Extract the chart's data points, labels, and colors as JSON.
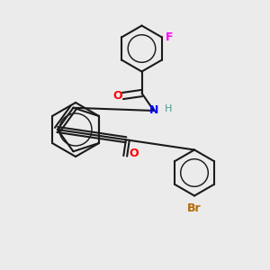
{
  "bg_color": "#ebebeb",
  "bond_color": "#1a1a1a",
  "atom_colors": {
    "N": "#0000ff",
    "O": "#ff0000",
    "F": "#ff00ff",
    "Br": "#b36a00",
    "H": "#4a9a8a"
  },
  "font_size": 9,
  "lw": 1.5
}
